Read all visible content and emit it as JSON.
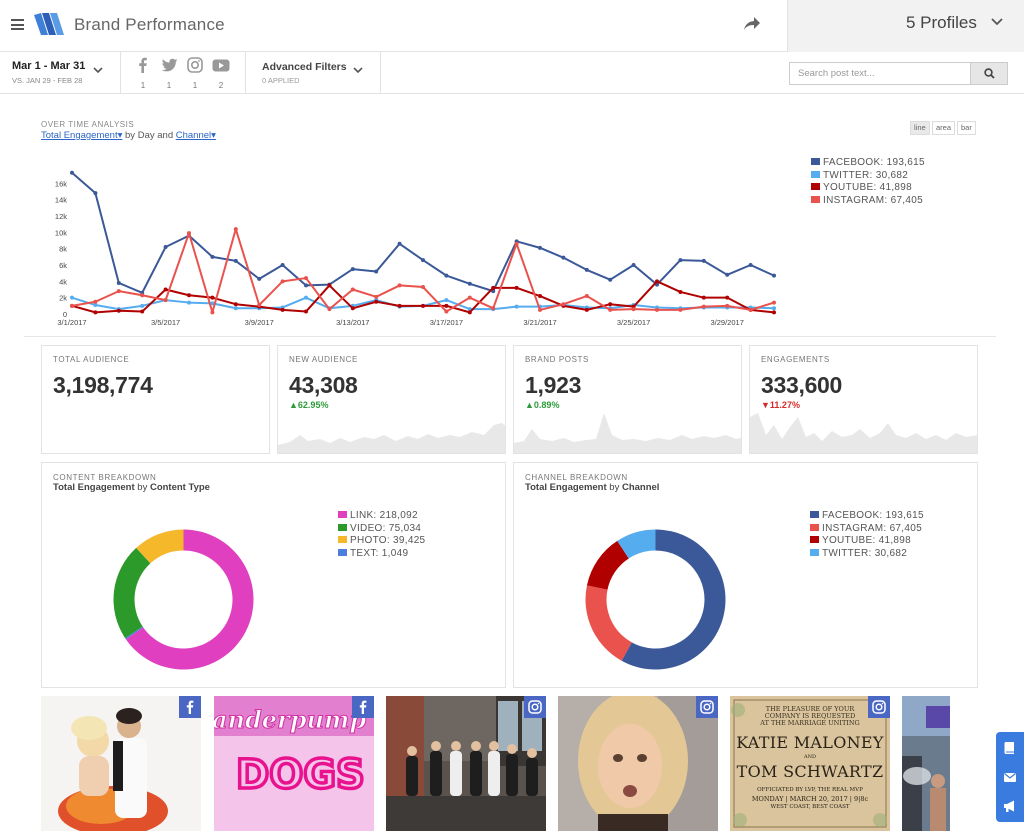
{
  "header": {
    "title": "Brand Performance",
    "profiles_label": "5 Profiles"
  },
  "filters": {
    "date_range": "Mar 1 - Mar 31",
    "compare_range": "VS. JAN 29 - FEB 28",
    "channels": [
      {
        "name": "facebook",
        "count": "1"
      },
      {
        "name": "twitter",
        "count": "1"
      },
      {
        "name": "instagram",
        "count": "1"
      },
      {
        "name": "youtube",
        "count": "2"
      }
    ],
    "advanced_label": "Advanced Filters",
    "advanced_status": "0 APPLIED",
    "search_placeholder": "Search post text..."
  },
  "over_time": {
    "section_title": "OVER TIME ANALYSIS",
    "metric": "Total Engagement",
    "by_word": "by",
    "period": "Day",
    "and_word": "and",
    "dimension": "Channel",
    "chart_types": [
      "line",
      "area",
      "bar"
    ],
    "active_type": "line"
  },
  "chart_data": {
    "type": "line",
    "title": "OVER TIME ANALYSIS",
    "xlabel": "",
    "ylabel": "Total Engagement",
    "ylim": [
      0,
      18000
    ],
    "yticks": [
      0,
      2000,
      4000,
      6000,
      8000,
      10000,
      12000,
      14000,
      16000
    ],
    "ytick_labels": [
      "0",
      "2k",
      "4k",
      "6k",
      "8k",
      "10k",
      "12k",
      "14k",
      "16k"
    ],
    "x_tick_labels": [
      "3/1/2017",
      "3/5/2017",
      "3/9/2017",
      "3/13/2017",
      "3/17/2017",
      "3/21/2017",
      "3/25/2017",
      "3/29/2017"
    ],
    "x_tick_days": [
      1,
      5,
      9,
      13,
      17,
      21,
      25,
      29
    ],
    "days": [
      1,
      2,
      3,
      4,
      5,
      6,
      7,
      8,
      9,
      10,
      11,
      12,
      13,
      14,
      15,
      16,
      17,
      18,
      19,
      20,
      21,
      22,
      23,
      24,
      25,
      26,
      27,
      28,
      29,
      30,
      31
    ],
    "series": [
      {
        "name": "FACEBOOK",
        "total": "193,615",
        "color": "#3b5998",
        "values": [
          17300,
          14800,
          3800,
          2600,
          8200,
          9600,
          7000,
          6500,
          4300,
          6000,
          3500,
          3600,
          5500,
          5200,
          8600,
          6600,
          4700,
          3700,
          2800,
          8900,
          8100,
          6900,
          5400,
          4200,
          6000,
          3600,
          6600,
          6500,
          4800,
          6000,
          4700
        ]
      },
      {
        "name": "TWITTER",
        "total": "30,682",
        "color": "#55acee",
        "values": [
          2000,
          1100,
          600,
          1000,
          1700,
          1400,
          1300,
          700,
          700,
          800,
          2000,
          700,
          1000,
          1700,
          900,
          1000,
          1700,
          600,
          600,
          900,
          900,
          1100,
          800,
          700,
          1100,
          800,
          700,
          800,
          800,
          800,
          700
        ]
      },
      {
        "name": "YOUTUBE",
        "total": "41,898",
        "color": "#b00000",
        "values": [
          1000,
          200,
          400,
          300,
          3000,
          2300,
          2000,
          1200,
          900,
          500,
          300,
          3500,
          700,
          1500,
          1000,
          1000,
          1000,
          200,
          3200,
          3200,
          2200,
          1000,
          500,
          1200,
          900,
          4000,
          2700,
          2000,
          2000,
          500,
          200
        ]
      },
      {
        "name": "INSTAGRAM",
        "total": "67,405",
        "color": "#e9524d",
        "values": [
          1000,
          1500,
          2800,
          2300,
          1700,
          9900,
          200,
          10400,
          1100,
          4000,
          4400,
          600,
          3000,
          2100,
          3500,
          3300,
          300,
          2000,
          700,
          8600,
          500,
          1200,
          2200,
          500,
          600,
          500,
          500,
          900,
          1000,
          500,
          1400
        ]
      }
    ]
  },
  "kpis": [
    {
      "title": "TOTAL AUDIENCE",
      "value": "3,198,774",
      "change": "",
      "direction": "none"
    },
    {
      "title": "NEW AUDIENCE",
      "value": "43,308",
      "change": "62.95%",
      "direction": "up"
    },
    {
      "title": "BRAND POSTS",
      "value": "1,923",
      "change": "0.89%",
      "direction": "up"
    },
    {
      "title": "ENGAGEMENTS",
      "value": "333,600",
      "change": "11.27%",
      "direction": "down"
    }
  ],
  "content_breakdown": {
    "title": "CONTENT BREAKDOWN",
    "metric": "Total Engagement",
    "by_word": "by",
    "dimension": "Content Type",
    "items": [
      {
        "label": "LINK",
        "text": "LINK: 218,092",
        "value": 218092,
        "color": "#e040c0"
      },
      {
        "label": "VIDEO",
        "text": "VIDEO: 75,034",
        "value": 75034,
        "color": "#2b9a2b"
      },
      {
        "label": "PHOTO",
        "text": "PHOTO: 39,425",
        "value": 39425,
        "color": "#f5b82a"
      },
      {
        "label": "TEXT",
        "text": "TEXT: 1,049",
        "value": 1049,
        "color": "#4e7de0"
      }
    ]
  },
  "channel_breakdown": {
    "title": "CHANNEL BREAKDOWN",
    "metric": "Total Engagement",
    "by_word": "by",
    "dimension": "Channel",
    "items": [
      {
        "label": "FACEBOOK",
        "text": "FACEBOOK: 193,615",
        "value": 193615,
        "color": "#3b5998"
      },
      {
        "label": "INSTAGRAM",
        "text": "INSTAGRAM: 67,405",
        "value": 67405,
        "color": "#e9524d"
      },
      {
        "label": "YOUTUBE",
        "text": "YOUTUBE: 41,898",
        "value": 41898,
        "color": "#b00000"
      },
      {
        "label": "TWITTER",
        "text": "TWITTER: 30,682",
        "value": 30682,
        "color": "#55acee"
      }
    ]
  },
  "posts": [
    {
      "channel": "facebook",
      "icon": "facebook-icon"
    },
    {
      "channel": "facebook",
      "icon": "facebook-icon",
      "sign_text": "Vanderpump DOGS"
    },
    {
      "channel": "instagram",
      "icon": "instagram-icon"
    },
    {
      "channel": "instagram",
      "icon": "instagram-icon"
    },
    {
      "channel": "instagram",
      "icon": "instagram-icon",
      "invite_top": "THE PLEASURE OF YOUR COMPANY IS REQUESTED AT THE MARRIAGE UNITING",
      "invite_name1": "KATIE MALONEY",
      "invite_and": "AND",
      "invite_name2": "TOM SCHWARTZ",
      "invite_officiant": "OFFICIATED BY LVP, THE REAL MVP",
      "invite_date": "MONDAY | MARCH 20, 2017 | 9|8c",
      "invite_footer": "WEST COAST, BEST COAST"
    },
    {
      "channel": "unknown",
      "icon": ""
    }
  ],
  "colors": {
    "accent": "#2a64c8",
    "up": "#2e9b3a",
    "down": "#d62b2b"
  }
}
